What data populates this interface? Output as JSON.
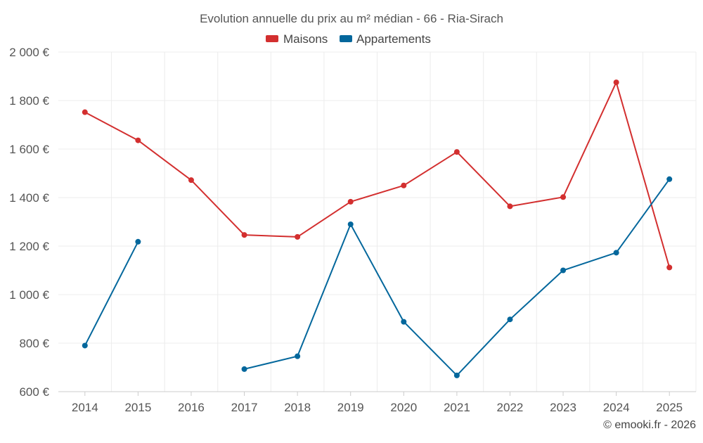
{
  "chart_data": {
    "type": "line",
    "title": "Evolution annuelle du prix au m² médian - 66 - Ria-Sirach",
    "categories": [
      "2014",
      "2015",
      "2016",
      "2017",
      "2018",
      "2019",
      "2020",
      "2021",
      "2022",
      "2023",
      "2024",
      "2025"
    ],
    "ylim": [
      600,
      2000
    ],
    "yticks": [
      600,
      800,
      1000,
      1200,
      1400,
      1600,
      1800,
      2000
    ],
    "ytick_labels": [
      "600 €",
      "800 €",
      "1 000 €",
      "1 200 €",
      "1 400 €",
      "1 600 €",
      "1 800 €",
      "2 000 €"
    ],
    "grid": true,
    "legend_position": "top-center",
    "series": [
      {
        "name": "Maisons",
        "color": "#d32f2f",
        "values": [
          1752,
          1636,
          1472,
          1246,
          1238,
          1383,
          1450,
          1588,
          1364,
          1402,
          1875,
          1112
        ]
      },
      {
        "name": "Appartements",
        "color": "#03679c",
        "values": [
          790,
          1218,
          null,
          693,
          746,
          1290,
          888,
          667,
          898,
          1100,
          1173,
          1476
        ]
      }
    ]
  },
  "credit": "© emooki.fr - 2026"
}
